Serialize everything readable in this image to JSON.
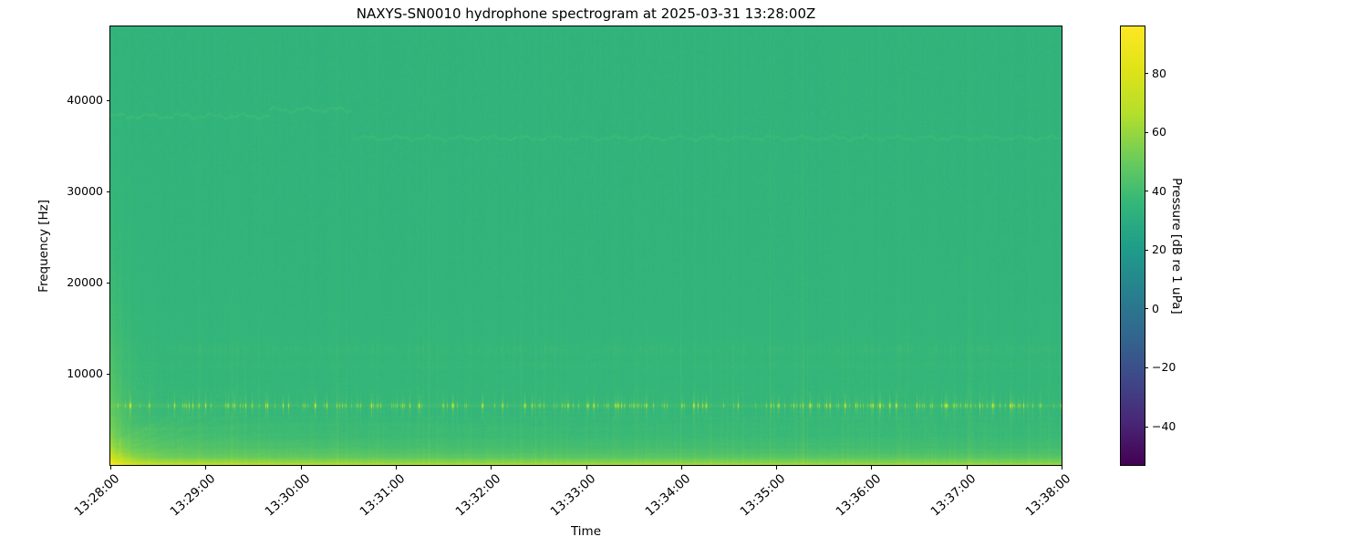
{
  "chart_data": {
    "type": "heatmap",
    "subtype": "spectrogram",
    "title": "NAXYS-SN0010 hydrophone spectrogram at 2025-03-31 13:28:00Z",
    "xlabel": "Time",
    "ylabel": "Frequency [Hz]",
    "x_ticks": [
      "13:28:00",
      "13:29:00",
      "13:30:00",
      "13:31:00",
      "13:32:00",
      "13:33:00",
      "13:34:00",
      "13:35:00",
      "13:36:00",
      "13:37:00",
      "13:38:00"
    ],
    "x_duration_seconds": 600,
    "y_ticks": [
      10000,
      20000,
      30000,
      40000
    ],
    "y_range_hz": [
      0,
      48100
    ],
    "grid": false,
    "colorbar": {
      "label": "Pressure [dB re 1 uPa]",
      "tick_labels": [
        "80",
        "60",
        "40",
        "20",
        "0",
        "−20",
        "−40"
      ],
      "tick_values": [
        80,
        60,
        40,
        20,
        0,
        -20,
        -40
      ],
      "clim": [
        -53,
        96
      ],
      "colormap": "viridis",
      "position": "right"
    },
    "content": {
      "background_db": 34,
      "low_freq_profile_db_hz": [
        [
          26,
          700
        ],
        [
          10,
          2500
        ],
        [
          3,
          12000
        ]
      ],
      "startup_transient": {
        "t_s": [
          0,
          40
        ],
        "amp_db": 14,
        "freq_scale_hz": 12000
      },
      "tonal_lines": [
        {
          "name": "wavy-line-38khz",
          "f_hz": 38250,
          "t_s": [
            0,
            100
          ],
          "amp_db": 4.5,
          "wobble_hz": 280
        },
        {
          "name": "wavy-line-39khz",
          "f_hz": 38950,
          "t_s": [
            100,
            152
          ],
          "amp_db": 4.5,
          "wobble_hz": 280
        },
        {
          "name": "wavy-line-36khz",
          "f_hz": 35850,
          "t_s": [
            152,
            600
          ],
          "amp_db": 4.0,
          "wobble_hz": 240
        },
        {
          "name": "dotted-line-6500hz",
          "f_hz": 6500,
          "t_s": [
            0,
            600
          ],
          "amp_db": 3,
          "dot_amp_db": 45
        },
        {
          "name": "faint-band-12600hz",
          "f_hz": 12650,
          "t_s": [
            35,
            600
          ],
          "amp_db": 2.2
        },
        {
          "name": "faint-band-11000hz",
          "f_hz": 11000,
          "t_s": [
            35,
            600
          ],
          "amp_db": 1.1
        }
      ],
      "harmonic_striations_hz": [
        1300,
        1900,
        2600,
        3400,
        4200
      ],
      "riser_arcs": {
        "t_s": [
          5,
          95
        ],
        "start_hz": 600,
        "spacing_hz": 500,
        "count": 5
      },
      "vertical_streaks": {
        "present": true,
        "max_amp_db": 5
      }
    }
  }
}
